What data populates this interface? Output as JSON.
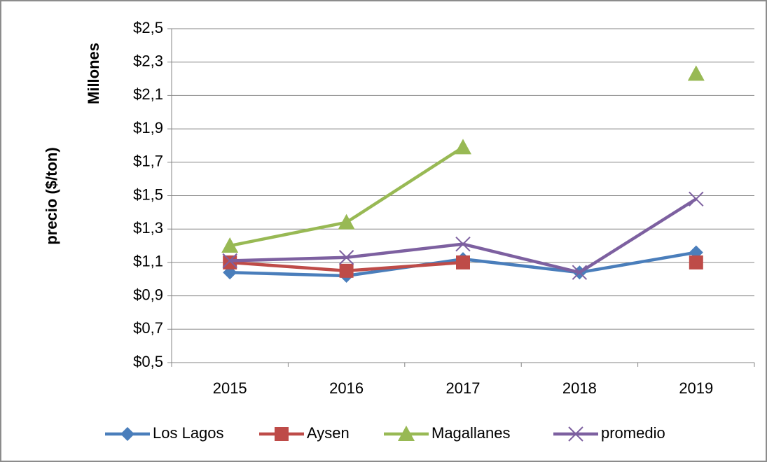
{
  "chart_data": {
    "type": "line",
    "y_label": "precio ($/ton)",
    "y_unit_label": "Millones",
    "categories": [
      "2015",
      "2016",
      "2017",
      "2018",
      "2019"
    ],
    "series": [
      {
        "name": "Los Lagos",
        "color": "#4a7ebb",
        "marker": "diamond",
        "values": [
          1.04,
          1.02,
          1.12,
          1.04,
          1.16
        ]
      },
      {
        "name": "Aysen",
        "color": "#be4b48",
        "marker": "square",
        "values": [
          1.1,
          1.05,
          1.1,
          null,
          1.1
        ]
      },
      {
        "name": "Magallanes",
        "color": "#98b954",
        "marker": "triangle",
        "values": [
          1.2,
          1.34,
          1.79,
          null,
          2.23
        ]
      },
      {
        "name": "promedio",
        "color": "#7d60a0",
        "marker": "x",
        "values": [
          1.11,
          1.13,
          1.21,
          1.04,
          1.48
        ]
      }
    ],
    "ylim": [
      0.5,
      2.5
    ],
    "yticks": [
      {
        "value": 0.5,
        "label": "$0,5"
      },
      {
        "value": 0.7,
        "label": "$0,7"
      },
      {
        "value": 0.9,
        "label": "$0,9"
      },
      {
        "value": 1.1,
        "label": "$1,1"
      },
      {
        "value": 1.3,
        "label": "$1,3"
      },
      {
        "value": 1.5,
        "label": "$1,5"
      },
      {
        "value": 1.7,
        "label": "$1,7"
      },
      {
        "value": 1.9,
        "label": "$1,9"
      },
      {
        "value": 2.1,
        "label": "$2,1"
      },
      {
        "value": 2.3,
        "label": "$2,3"
      },
      {
        "value": 2.5,
        "label": "$2,5"
      }
    ],
    "grid": true,
    "legend": "bottom"
  }
}
